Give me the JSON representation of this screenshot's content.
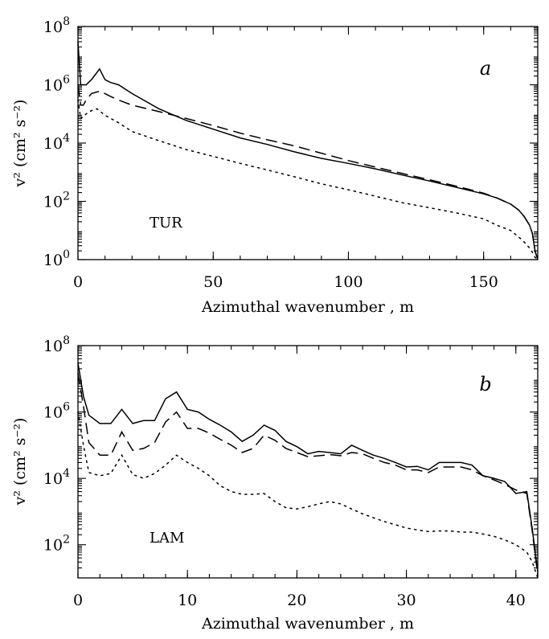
{
  "figure": {
    "colors": {
      "ink": "#000000",
      "background": "#ffffff"
    }
  },
  "chart_data": [
    {
      "type": "line",
      "panel_label": "a",
      "annotation": "TUR",
      "xlabel": "Azimuthal wavenumber , m",
      "ylabel": "v² (cm² s⁻²)",
      "yscale": "log",
      "xlim": [
        0,
        170
      ],
      "ylim": [
        1,
        100000000
      ],
      "x_ticks": [
        0,
        50,
        100,
        150
      ],
      "y_ticks": [
        {
          "base": "10",
          "exp": "0",
          "value": 1
        },
        {
          "base": "10",
          "exp": "2",
          "value": 100
        },
        {
          "base": "10",
          "exp": "4",
          "value": 10000
        },
        {
          "base": "10",
          "exp": "6",
          "value": 1000000
        },
        {
          "base": "10",
          "exp": "8",
          "value": 100000000
        }
      ],
      "series": [
        {
          "name": "solid",
          "style": "solid",
          "x": [
            0,
            1,
            3,
            5,
            8,
            10,
            12,
            15,
            20,
            30,
            40,
            50,
            60,
            70,
            80,
            90,
            100,
            110,
            120,
            130,
            140,
            150,
            155,
            160,
            163,
            165,
            167,
            168,
            169,
            170
          ],
          "y": [
            30000000,
            1000000,
            1000000,
            1500000,
            3500000,
            1500000,
            1200000,
            1000000,
            500000,
            150000,
            60000,
            30000,
            15000,
            9000,
            5000,
            3000,
            2000,
            1300,
            800,
            500,
            300,
            180,
            130,
            80,
            50,
            30,
            15,
            8,
            2,
            1
          ]
        },
        {
          "name": "dashed",
          "style": "dashed",
          "x": [
            0,
            1,
            2,
            3,
            5,
            8,
            10,
            12,
            15,
            20,
            30,
            40,
            50,
            60,
            70,
            80,
            90,
            100,
            110,
            120,
            130,
            140,
            150,
            155,
            160,
            163,
            165,
            167,
            168,
            169,
            170
          ],
          "y": [
            1000000,
            200000,
            200000,
            300000,
            500000,
            600000,
            500000,
            400000,
            300000,
            200000,
            120000,
            70000,
            40000,
            22000,
            13000,
            8000,
            4500,
            2500,
            1500,
            900,
            550,
            330,
            190,
            130,
            80,
            50,
            30,
            15,
            8,
            2,
            1
          ]
        },
        {
          "name": "dotted",
          "style": "dotted",
          "x": [
            0,
            1,
            2,
            3,
            5,
            7,
            10,
            15,
            20,
            30,
            40,
            50,
            60,
            70,
            80,
            90,
            100,
            110,
            120,
            130,
            140,
            150,
            155,
            160,
            163,
            165,
            167,
            168,
            169,
            170
          ],
          "y": [
            300000,
            70000,
            80000,
            100000,
            130000,
            150000,
            90000,
            50000,
            25000,
            12000,
            6000,
            3500,
            2000,
            1200,
            700,
            400,
            250,
            150,
            90,
            60,
            40,
            25,
            15,
            10,
            6,
            4,
            2.5,
            1.8,
            1.2,
            1
          ]
        }
      ]
    },
    {
      "type": "line",
      "panel_label": "b",
      "annotation": "LAM",
      "xlabel": "Azimuthal wavenumber , m",
      "ylabel": "v² (cm² s⁻²)",
      "yscale": "log",
      "xlim": [
        0,
        42
      ],
      "ylim": [
        10,
        100000000
      ],
      "x_ticks": [
        0,
        10,
        20,
        30,
        40
      ],
      "y_ticks": [
        {
          "base": "10",
          "exp": "2",
          "value": 100
        },
        {
          "base": "10",
          "exp": "4",
          "value": 10000
        },
        {
          "base": "10",
          "exp": "6",
          "value": 1000000
        },
        {
          "base": "10",
          "exp": "8",
          "value": 100000000
        }
      ],
      "series": [
        {
          "name": "solid",
          "style": "solid",
          "x": [
            0,
            0.5,
            1,
            2,
            3,
            4,
            5,
            6,
            7,
            8,
            9,
            10,
            11,
            12,
            13,
            14,
            15,
            16,
            17,
            18,
            19,
            20,
            21,
            22,
            23,
            24,
            25,
            26,
            27,
            28,
            29,
            30,
            31,
            32,
            33,
            34,
            35,
            36,
            37,
            38,
            39,
            40,
            41,
            41.5,
            42
          ],
          "y": [
            30000000,
            3000000,
            800000,
            450000,
            450000,
            1200000,
            450000,
            550000,
            550000,
            2500000,
            4000000,
            1200000,
            1000000,
            600000,
            400000,
            250000,
            130000,
            200000,
            400000,
            280000,
            130000,
            90000,
            55000,
            65000,
            60000,
            55000,
            100000,
            70000,
            50000,
            40000,
            30000,
            22000,
            23000,
            18000,
            30000,
            30000,
            30000,
            25000,
            12000,
            10000,
            8000,
            3500,
            4000,
            300,
            15
          ]
        },
        {
          "name": "dashed",
          "style": "dashed",
          "x": [
            0,
            0.5,
            1,
            2,
            3,
            4,
            5,
            6,
            7,
            8,
            9,
            10,
            11,
            12,
            13,
            14,
            15,
            16,
            17,
            18,
            19,
            20,
            21,
            22,
            23,
            24,
            25,
            26,
            27,
            28,
            29,
            30,
            31,
            32,
            33,
            34,
            35,
            36,
            37,
            38,
            39,
            40,
            41,
            41.5,
            42
          ],
          "y": [
            15000000,
            1500000,
            120000,
            50000,
            50000,
            250000,
            70000,
            80000,
            120000,
            500000,
            1000000,
            320000,
            320000,
            230000,
            150000,
            100000,
            60000,
            80000,
            200000,
            140000,
            80000,
            60000,
            45000,
            48000,
            52000,
            48000,
            60000,
            55000,
            40000,
            30000,
            25000,
            18000,
            18000,
            15000,
            22000,
            22000,
            22000,
            18000,
            12000,
            9000,
            6500,
            4500,
            3500,
            250,
            12
          ]
        },
        {
          "name": "dotted",
          "style": "dotted",
          "x": [
            0,
            0.5,
            1,
            2,
            3,
            4,
            5,
            6,
            7,
            8,
            9,
            10,
            11,
            12,
            13,
            14,
            15,
            16,
            17,
            18,
            19,
            20,
            21,
            22,
            23,
            24,
            25,
            26,
            27,
            28,
            29,
            30,
            31,
            32,
            33,
            34,
            35,
            36,
            37,
            38,
            39,
            40,
            41,
            41.5,
            42
          ],
          "y": [
            1000000,
            100000,
            15000,
            12000,
            14000,
            50000,
            13000,
            10000,
            14000,
            25000,
            50000,
            30000,
            20000,
            12000,
            6000,
            4000,
            3300,
            3300,
            3500,
            2000,
            1300,
            1200,
            1400,
            1700,
            2000,
            1700,
            1200,
            850,
            650,
            500,
            400,
            320,
            280,
            250,
            260,
            260,
            240,
            240,
            210,
            180,
            140,
            100,
            60,
            30,
            10
          ]
        }
      ]
    }
  ]
}
